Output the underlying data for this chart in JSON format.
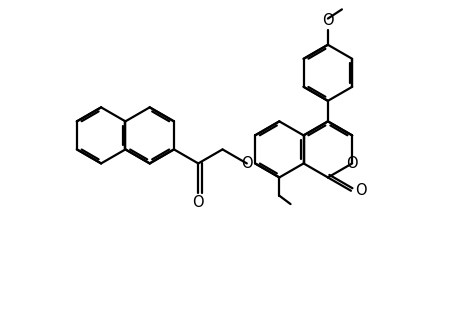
{
  "bg": "#ffffff",
  "lc": "#000000",
  "lw": 1.6,
  "dbo": 0.055,
  "figsize": [
    4.62,
    3.12
  ],
  "dpi": 100,
  "xlim": [
    -0.5,
    10.5
  ],
  "ylim": [
    -0.3,
    7.2
  ],
  "r": 0.68
}
